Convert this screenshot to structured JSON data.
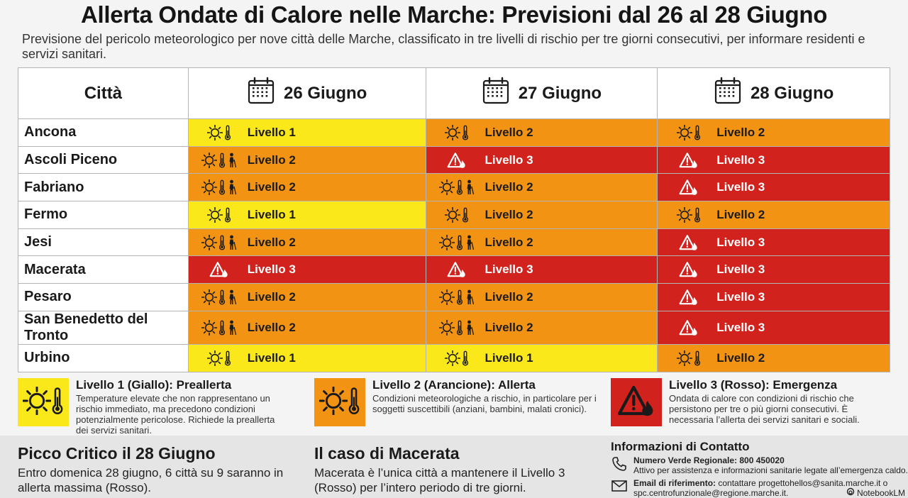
{
  "title": "Allerta Ondate di Calore nelle Marche: Previsioni dal 26 al 28 Giugno",
  "subtitle": "Previsione del pericolo meteorologico per nove città delle Marche, classificato in tre livelli di rischio per tre giorni consecutivi, per informare residenti e servizi sanitari.",
  "table": {
    "city_header": "Città",
    "days": [
      "26 Giugno",
      "27 Giugno",
      "28 Giugno"
    ],
    "level_labels": {
      "1": "Livello 1",
      "2": "Livello 2",
      "3": "Livello 3"
    },
    "rows": [
      {
        "city": "Ancona",
        "levels": [
          1,
          2,
          2
        ],
        "icons": [
          "sun-thermometer",
          "sun-thermometer",
          "sun-thermometer"
        ]
      },
      {
        "city": "Ascoli Piceno",
        "levels": [
          2,
          3,
          3
        ],
        "icons": [
          "sun-person",
          "warning-fire",
          "warning-fire"
        ]
      },
      {
        "city": "Fabriano",
        "levels": [
          2,
          2,
          3
        ],
        "icons": [
          "sun-person",
          "sun-person",
          "warning-fire"
        ]
      },
      {
        "city": "Fermo",
        "levels": [
          1,
          2,
          2
        ],
        "icons": [
          "sun-thermometer",
          "sun-thermometer",
          "sun-thermometer"
        ]
      },
      {
        "city": "Jesi",
        "levels": [
          2,
          2,
          3
        ],
        "icons": [
          "sun-person",
          "sun-person",
          "warning-fire"
        ]
      },
      {
        "city": "Macerata",
        "levels": [
          3,
          3,
          3
        ],
        "icons": [
          "warning-fire",
          "warning-fire",
          "warning-fire"
        ]
      },
      {
        "city": "Pesaro",
        "levels": [
          2,
          2,
          3
        ],
        "icons": [
          "sun-person",
          "sun-person",
          "warning-fire"
        ]
      },
      {
        "city": "San Benedetto del Tronto",
        "levels": [
          2,
          2,
          3
        ],
        "icons": [
          "sun-person",
          "sun-person",
          "warning-fire"
        ]
      },
      {
        "city": "Urbino",
        "levels": [
          1,
          1,
          2
        ],
        "icons": [
          "sun-thermometer",
          "sun-thermometer",
          "sun-thermometer"
        ]
      }
    ]
  },
  "colors": {
    "level1": "#fae81a",
    "level2": "#f39314",
    "level3": "#d1221d"
  },
  "legend": [
    {
      "title": "Livello 1 (Giallo): Preallerta",
      "desc": "Temperature elevate che non rappresentano un rischio immediato, ma precedono condizioni potenzialmente pericolose. Richiede la preallerta dei servizi sanitari.",
      "icon": "sun-thermometer-icon"
    },
    {
      "title": "Livello 2 (Arancione): Allerta",
      "desc": "Condizioni meteorologiche a rischio, in particolare per i soggetti suscettibili (anziani, bambini, malati cronici).",
      "icon": "sun-thermometer-icon"
    },
    {
      "title": "Livello 3 (Rosso): Emergenza",
      "desc": "Ondata di calore con condizioni di rischio che persistono per tre o più giorni consecutivi. È necessaria l’allerta dei servizi sanitari e sociali.",
      "icon": "warning-fire-icon"
    }
  ],
  "bottom": {
    "peak": {
      "title": "Picco Critico il 28 Giugno",
      "text": "Entro domenica 28 giugno, 6 città su 9 saranno in allerta massima (Rosso)."
    },
    "macerata": {
      "title": "Il caso di Macerata",
      "text": "Macerata è l’unica città a mantenere il Livello 3 (Rosso) per l’intero periodo di tre giorni."
    },
    "contacts": {
      "title": "Informazioni di Contatto",
      "phone_label": "Numero Verde Regionale: 800 450020",
      "phone_desc": "Attivo per assistenza e informazioni sanitarie legate all’emergenza caldo.",
      "email_label": "Email di riferimento:",
      "email_text": " contattare progettohellos@sanita.marche.it o spc.centrofunzionale@regione.marche.it."
    }
  },
  "watermark": "NotebookLM"
}
